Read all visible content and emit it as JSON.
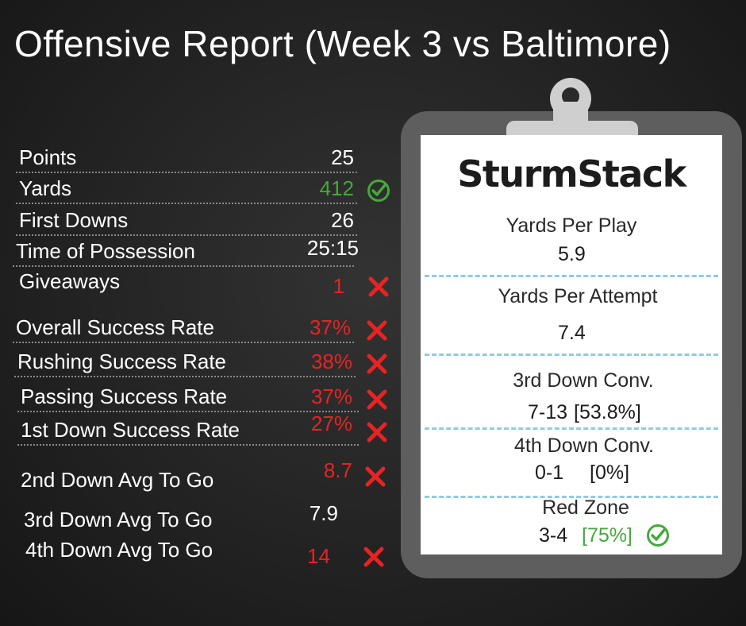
{
  "title": "Offensive Report (Week 3 vs Baltimore)",
  "stats": [
    {
      "label": "Points",
      "value": "25",
      "value_color": "white",
      "mark": "none"
    },
    {
      "label": "Yards",
      "value": "412",
      "value_color": "green",
      "mark": "check"
    },
    {
      "label": "First Downs",
      "value": "26",
      "value_color": "white",
      "mark": "none"
    },
    {
      "label": "Time of Possession",
      "value": "25:15",
      "value_color": "white",
      "mark": "none"
    },
    {
      "label": "Giveaways",
      "value": "1",
      "value_color": "red",
      "mark": "x"
    },
    {
      "label": "Overall Success Rate",
      "value": "37%",
      "value_color": "red",
      "mark": "x"
    },
    {
      "label": "Rushing Success Rate",
      "value": "38%",
      "value_color": "red",
      "mark": "x"
    },
    {
      "label": "Passing Success Rate",
      "value": "37%",
      "value_color": "red",
      "mark": "x"
    },
    {
      "label": "1st Down Success Rate",
      "value": "27%",
      "value_color": "red",
      "mark": "x"
    },
    {
      "label": "2nd Down Avg To Go",
      "value": "8.7",
      "value_color": "red",
      "mark": "x"
    },
    {
      "label": "3rd Down Avg To Go",
      "value": "7.9",
      "value_color": "white",
      "mark": "none"
    },
    {
      "label": "4th Down Avg To Go",
      "value": "14",
      "value_color": "red",
      "mark": "x"
    }
  ],
  "clipboard": {
    "brand": "SturmStack",
    "sections": [
      {
        "label": "Yards Per Play",
        "value": "5.9"
      },
      {
        "label": "Yards Per Attempt",
        "value": "7.4"
      },
      {
        "label": "3rd Down Conv.",
        "value": "7-13",
        "pct": "[53.8%]"
      },
      {
        "label": "4th Down Conv.",
        "value": "0-1",
        "pct": "[0%]"
      },
      {
        "label": "Red Zone",
        "value": "3-4",
        "pct": "[75%]",
        "mark": "check"
      }
    ]
  },
  "colors": {
    "good": "#46a83c",
    "bad": "#e82323",
    "divider": "#8fcbe8",
    "background": "#232323",
    "board": "#5e5e5e"
  }
}
